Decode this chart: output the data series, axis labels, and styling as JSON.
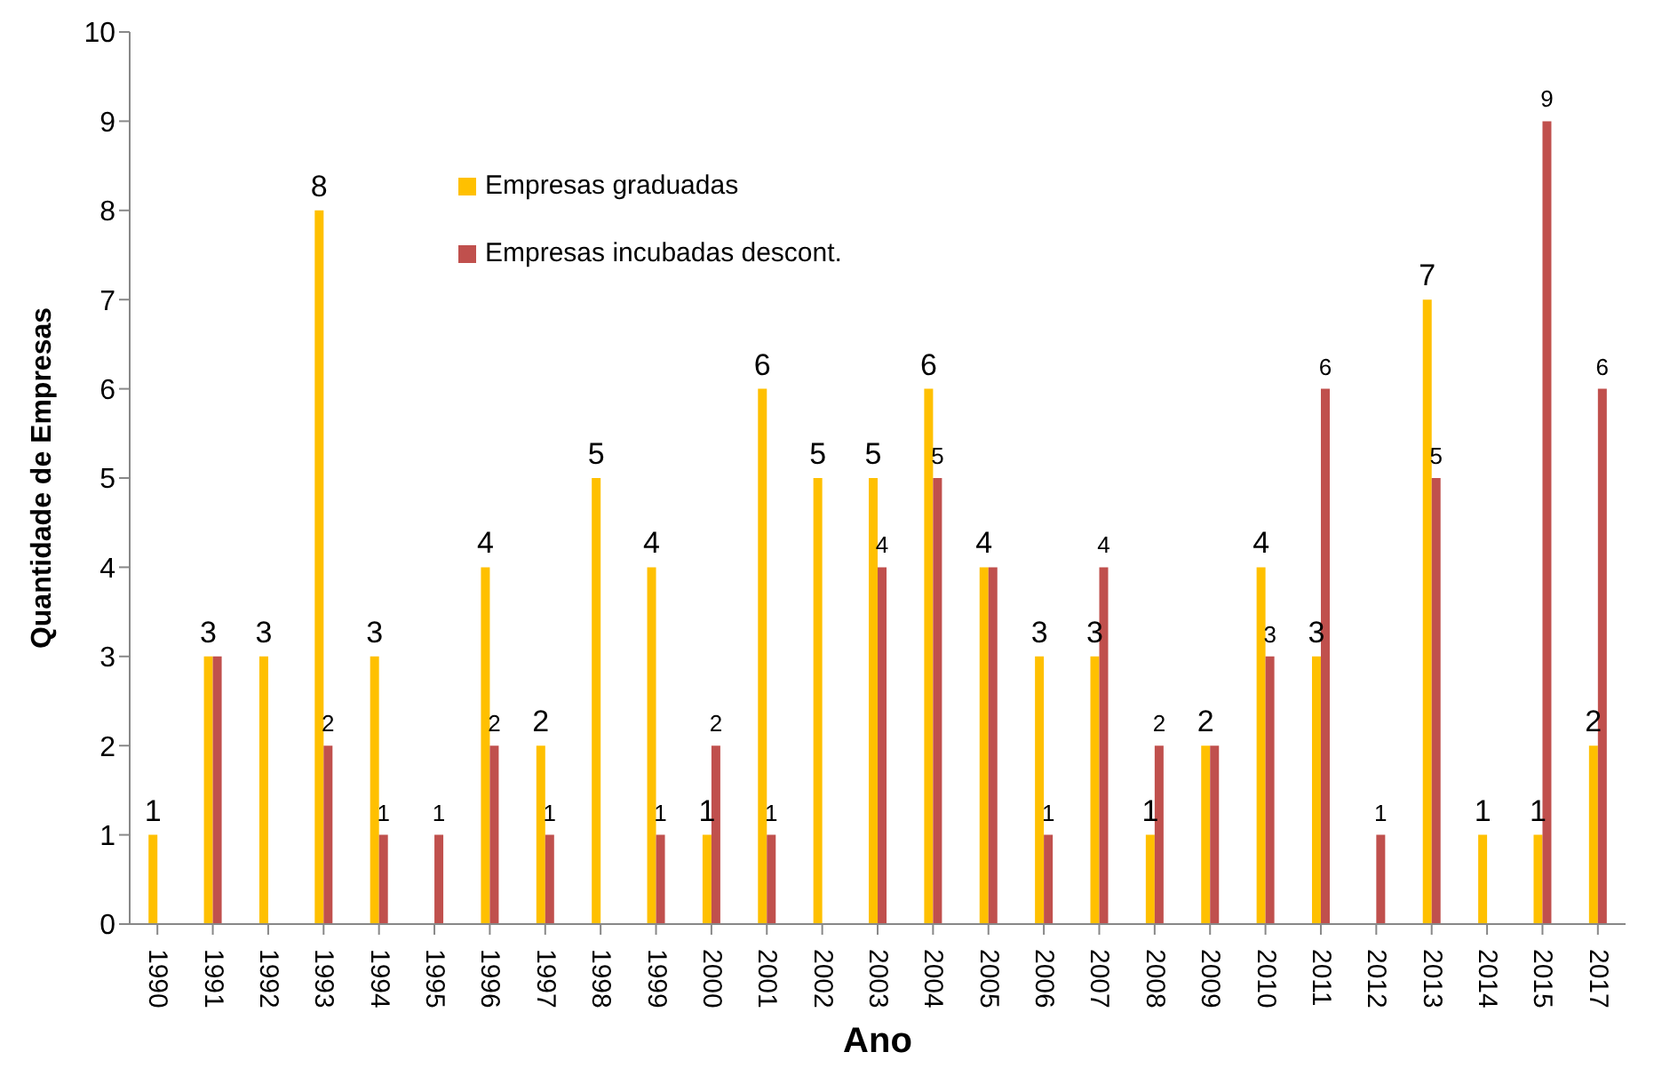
{
  "chart_data": {
    "type": "bar",
    "xlabel": "Ano",
    "ylabel": "Quantidade de Empresas",
    "categories": [
      "1990",
      "1991",
      "1992",
      "1993",
      "1994",
      "1995",
      "1996",
      "1997",
      "1998",
      "1999",
      "2000",
      "2001",
      "2002",
      "2003",
      "2004",
      "2005",
      "2006",
      "2007",
      "2008",
      "2009",
      "2010",
      "2011",
      "2012",
      "2013",
      "2014",
      "2015",
      "2017"
    ],
    "series": [
      {
        "name": "Empresas graduadas",
        "color": "#ffc000",
        "values": [
          1,
          3,
          3,
          8,
          3,
          null,
          4,
          2,
          5,
          4,
          1,
          6,
          5,
          5,
          6,
          4,
          3,
          3,
          1,
          2,
          4,
          3,
          null,
          7,
          1,
          1,
          2
        ],
        "value_labels": [
          "1",
          "3",
          "3",
          "8",
          "3",
          null,
          "4",
          "2",
          "5",
          "4",
          "1",
          "6",
          "5",
          "5",
          "6",
          "4",
          "3",
          "3",
          "1",
          "2",
          "4",
          "3",
          null,
          "7",
          "1",
          "1",
          "2"
        ]
      },
      {
        "name": "Empresas incubadas descont.",
        "color": "#c0504d",
        "values": [
          null,
          3,
          null,
          2,
          1,
          1,
          2,
          1,
          null,
          1,
          2,
          1,
          null,
          4,
          5,
          4,
          1,
          4,
          2,
          2,
          3,
          6,
          1,
          5,
          null,
          9,
          6
        ],
        "value_labels": [
          null,
          null,
          null,
          "2",
          "1",
          "1",
          "2",
          "1",
          null,
          "1",
          "2",
          "1",
          null,
          "4",
          "5",
          null,
          "1",
          "4",
          "2",
          null,
          "3",
          "6",
          "1",
          "5",
          null,
          "9",
          "6"
        ]
      }
    ],
    "ylim": [
      0,
      10
    ],
    "yticks": [
      0,
      1,
      2,
      3,
      4,
      5,
      6,
      7,
      8,
      9,
      10
    ],
    "grid": false,
    "legend": "top left"
  }
}
